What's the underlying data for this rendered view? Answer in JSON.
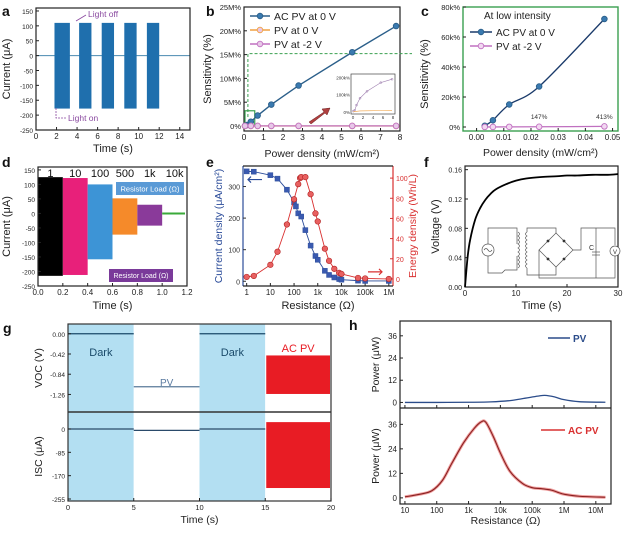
{
  "chart_data": [
    {
      "panel": "a",
      "type": "bar",
      "xlabel": "Time (s)",
      "ylabel": "Current (μA)",
      "xlim": [
        0,
        15
      ],
      "ylim": [
        -250,
        160
      ],
      "xticks": [
        0,
        2,
        4,
        6,
        8,
        10,
        12,
        14
      ],
      "yticks": [
        -250,
        -200,
        -150,
        -100,
        -50,
        0,
        50,
        100,
        150
      ],
      "pulses": [
        {
          "start": 1.8,
          "end": 3.3,
          "high": 110,
          "low": -178
        },
        {
          "start": 4.2,
          "end": 5.4,
          "high": 110,
          "low": -178
        },
        {
          "start": 6.4,
          "end": 7.6,
          "high": 110,
          "low": -178
        },
        {
          "start": 8.6,
          "end": 9.8,
          "high": 110,
          "low": -178
        },
        {
          "start": 10.8,
          "end": 12.0,
          "high": 110,
          "low": -178
        }
      ],
      "annotations": [
        "Light off",
        "Light on"
      ],
      "color": "#1f6fad"
    },
    {
      "panel": "b",
      "type": "line",
      "xlabel": "Power density (mW/cm²)",
      "ylabel": "Sensitivity (%)",
      "xlim": [
        0,
        8
      ],
      "ylim": [
        0,
        25
      ],
      "y_unit": "M%",
      "xticks": [
        0,
        1,
        2,
        3,
        4,
        5,
        6,
        7,
        8
      ],
      "yticks": [
        0,
        5,
        10,
        15,
        20,
        25
      ],
      "ytick_labels": [
        "0%",
        "5M%",
        "10M%",
        "15M%",
        "20M%",
        "25M%"
      ],
      "series": [
        {
          "name": "AC PV at 0 V",
          "color": "#2b5f8a",
          "x": [
            0.05,
            0.15,
            0.35,
            0.7,
            1.4,
            2.8,
            5.55,
            7.8
          ],
          "y": [
            0.05,
            0.2,
            0.9,
            2.2,
            4.5,
            8.5,
            15.5,
            21.0
          ]
        },
        {
          "name": "PV at 0 V",
          "color": "#f0a040",
          "x": [
            0.05,
            0.35,
            0.7,
            1.4,
            2.8,
            5.55,
            7.8
          ],
          "y": [
            0,
            0,
            0,
            0,
            0,
            0,
            0
          ]
        },
        {
          "name": "PV at -2 V",
          "color": "#c070c0",
          "x": [
            0.05,
            0.35,
            0.7,
            1.4,
            2.8,
            5.55,
            7.8
          ],
          "y": [
            0.02,
            0.02,
            0.02,
            0.02,
            0.02,
            0.02,
            0.02
          ]
        }
      ],
      "inset": {
        "yticks": [
          "0%",
          "100k%",
          "200k%"
        ],
        "xticks": [
          "0",
          "2",
          "4",
          "6",
          "8"
        ]
      }
    },
    {
      "panel": "c",
      "type": "line",
      "title": "At low intensity",
      "xlabel": "Power density (mW/cm²)",
      "ylabel": "Sensitivity (%)",
      "xlim": [
        -0.005,
        0.052
      ],
      "ylim": [
        0,
        80
      ],
      "y_unit": "k%",
      "xticks": [
        0.0,
        0.01,
        0.02,
        0.03,
        0.04,
        0.05
      ],
      "xtick_labels": [
        "0.00",
        "0.01",
        "0.02",
        "0.03",
        "0.04",
        "0.05"
      ],
      "yticks": [
        0,
        20,
        40,
        60,
        80
      ],
      "ytick_labels": [
        "0%",
        "20k%",
        "40k%",
        "60k%",
        "80k%"
      ],
      "series": [
        {
          "name": "AC PV at 0 V",
          "color": "#2b5f8a",
          "x": [
            0.003,
            0.006,
            0.012,
            0.023,
            0.047
          ],
          "y": [
            0.8,
            4.5,
            15,
            27,
            72
          ]
        },
        {
          "name": "PV at -2 V",
          "color": "#c070c0",
          "x": [
            0.003,
            0.006,
            0.012,
            0.023,
            0.047
          ],
          "y": [
            0.05,
            0.05,
            0.1,
            0.15,
            0.4
          ]
        }
      ],
      "annotations": [
        "147%",
        "413%"
      ]
    },
    {
      "panel": "d",
      "type": "bar",
      "xlabel": "Time (s)",
      "ylabel": "Current (μA)",
      "xlim": [
        0,
        1.2
      ],
      "ylim": [
        -250,
        160
      ],
      "xticks": [
        0.0,
        0.2,
        0.4,
        0.6,
        0.8,
        1.0,
        1.2
      ],
      "xtick_labels": [
        "0.0",
        "0.2",
        "0.4",
        "0.6",
        "0.8",
        "1.0",
        "1.2"
      ],
      "yticks": [
        -250,
        -200,
        -150,
        -100,
        -50,
        0,
        50,
        100,
        150
      ],
      "segments": [
        {
          "label": "1",
          "start": 0.0,
          "end": 0.2,
          "high": 125,
          "low": -215,
          "color": "#000000"
        },
        {
          "label": "10",
          "start": 0.2,
          "end": 0.4,
          "high": 122,
          "low": -212,
          "color": "#e8207a"
        },
        {
          "label": "100",
          "start": 0.4,
          "end": 0.6,
          "high": 100,
          "low": -158,
          "color": "#3d94d6"
        },
        {
          "label": "500",
          "start": 0.6,
          "end": 0.8,
          "high": 52,
          "low": -73,
          "color": "#f58a2a"
        },
        {
          "label": "1k",
          "start": 0.8,
          "end": 1.0,
          "high": 30,
          "low": -42,
          "color": "#8a3a9a"
        },
        {
          "label": "10k",
          "start": 1.0,
          "end": 1.2,
          "high": 2,
          "low": -2,
          "color": "#3aaa3a"
        }
      ],
      "legend_boxes": [
        "Resistor Load (Ω)",
        "Resistor Load (Ω)"
      ]
    },
    {
      "panel": "e",
      "type": "line",
      "xlabel": "Resistance (Ω)",
      "ylabel": "Current density (μA/cm²)",
      "ylabel_right": "Energy density (Wh/L)",
      "x_scale": "log",
      "xlim": [
        0.7,
        1500000
      ],
      "ylim": [
        -15,
        365
      ],
      "ylim_right": [
        -7,
        112
      ],
      "xticks": [
        1,
        10,
        100,
        1000,
        10000,
        100000,
        1000000
      ],
      "xtick_labels": [
        "1",
        "10",
        "100",
        "1k",
        "10k",
        "100k",
        "1M"
      ],
      "yticks": [
        0,
        100,
        200,
        300
      ],
      "yticks_right": [
        0,
        20,
        40,
        60,
        80,
        100
      ],
      "series": [
        {
          "name": "Current density",
          "axis": "left",
          "color": "#2b4c9a",
          "marker": "square",
          "x": [
            1,
            2,
            10,
            20,
            50,
            100,
            120,
            150,
            200,
            300,
            500,
            800,
            1000,
            2000,
            3000,
            5000,
            8000,
            10000,
            50000,
            100000,
            1000000
          ],
          "y": [
            348,
            347,
            336,
            325,
            290,
            250,
            237,
            215,
            205,
            162,
            113,
            80,
            68,
            33,
            20,
            12,
            7,
            5,
            2,
            1,
            1
          ]
        },
        {
          "name": "Energy density",
          "axis": "right",
          "color": "#d93030",
          "marker": "circle",
          "x": [
            1,
            2,
            10,
            20,
            50,
            100,
            150,
            180,
            200,
            300,
            500,
            800,
            1000,
            2000,
            3000,
            5000,
            8000,
            10000,
            50000,
            100000,
            1000000
          ],
          "y": [
            2,
            3,
            14,
            27,
            54,
            79,
            94,
            100,
            101,
            101,
            84,
            65,
            57,
            30,
            18,
            10,
            6,
            5,
            1,
            0.5,
            0
          ]
        }
      ]
    },
    {
      "panel": "f",
      "type": "line",
      "xlabel": "Time (s)",
      "ylabel": "Voltage (V)",
      "xlim": [
        0,
        30
      ],
      "ylim": [
        0,
        0.165
      ],
      "xticks": [
        0,
        10,
        20,
        30
      ],
      "yticks": [
        0.0,
        0.04,
        0.08,
        0.12,
        0.16
      ],
      "ytick_labels": [
        "0.00",
        "0.04",
        "0.08",
        "0.12",
        "0.16"
      ],
      "series": [
        {
          "name": "Voltage",
          "color": "#000000",
          "x": [
            0,
            0.5,
            1,
            2,
            3,
            4,
            5,
            6,
            8,
            10,
            12,
            15,
            18,
            20,
            22,
            25,
            28,
            30
          ],
          "y": [
            0,
            0.04,
            0.064,
            0.092,
            0.108,
            0.119,
            0.127,
            0.133,
            0.14,
            0.145,
            0.148,
            0.15,
            0.151,
            0.152,
            0.152,
            0.153,
            0.153,
            0.154
          ]
        }
      ],
      "inset_circuit": {
        "labels": [
          "C",
          "V"
        ]
      }
    },
    {
      "panel": "g",
      "type": "line",
      "xlabel": "Time (s)",
      "ylabel_top": "V_OC (V)",
      "ylabel_bottom": "I_SC (μA)",
      "xlim": [
        0,
        20
      ],
      "xticks": [
        0,
        5,
        10,
        15,
        20
      ],
      "yticks_top": [
        0.0,
        -0.42,
        -0.84,
        -1.26
      ],
      "ytick_labels_top": [
        "0.00",
        "-0.42",
        "-0.84",
        "-1.26"
      ],
      "ylim_top": [
        -1.5,
        0.12
      ],
      "yticks_bottom": [
        0,
        -85,
        -170,
        -255
      ],
      "ylim_bottom": [
        -255,
        40
      ],
      "regions": [
        {
          "label": "Dark",
          "start": 0,
          "end": 5,
          "color": "#b3dff2"
        },
        {
          "label": "PV",
          "start": 5,
          "end": 10,
          "color": "#ffffff"
        },
        {
          "label": "Dark",
          "start": 10,
          "end": 15,
          "color": "#b3dff2"
        },
        {
          "label": "AC PV",
          "start": 15,
          "end": 20,
          "color": "#ffffff"
        }
      ],
      "voc_levels": [
        0.0,
        -1.1,
        0.0
      ],
      "isc_levels": [
        0,
        -5,
        0
      ],
      "ac_pv_band_top": {
        "high": -0.45,
        "low": -1.25
      },
      "ac_pv_band_bottom": {
        "high": 25,
        "low": -215
      },
      "ac_color": "#e81c24"
    },
    {
      "panel": "h",
      "type": "line",
      "xlabel": "Resistance (Ω)",
      "ylabel": "Power (μW)",
      "x_scale": "log",
      "xlim": [
        7,
        30000000
      ],
      "ylim": [
        -3,
        44
      ],
      "xticks": [
        10,
        100,
        1000,
        10000,
        100000,
        1000000,
        10000000
      ],
      "xtick_labels": [
        "10",
        "100",
        "1k",
        "10k",
        "100k",
        "1M",
        "10M"
      ],
      "yticks": [
        0,
        12,
        24,
        36
      ],
      "series": [
        {
          "name": "PV",
          "color": "#2b4c8a",
          "x": [
            10,
            100,
            1000,
            5000,
            20000,
            60000,
            150000,
            250000,
            500000,
            1000000,
            3000000,
            20000000
          ],
          "y": [
            0,
            0,
            0.1,
            0.3,
            1.0,
            2.3,
            3.4,
            3.8,
            3.0,
            1.5,
            0.4,
            0.1
          ]
        },
        {
          "name": "AC PV",
          "color": "#d93030",
          "x": [
            10,
            30,
            70,
            150,
            300,
            700,
            1500,
            2500,
            3500,
            6000,
            10000,
            20000,
            50000,
            100000,
            200000,
            400000,
            700000,
            1000000,
            3000000,
            20000000
          ],
          "y": [
            0.5,
            1.8,
            3.5,
            8.5,
            17,
            27,
            34,
            37.2,
            37,
            30,
            22,
            13,
            7,
            5,
            4.5,
            3.8,
            2.5,
            1.8,
            0.8,
            0.3
          ]
        }
      ]
    }
  ],
  "panel_labels": [
    "a",
    "b",
    "c",
    "d",
    "e",
    "f",
    "g",
    "h"
  ]
}
